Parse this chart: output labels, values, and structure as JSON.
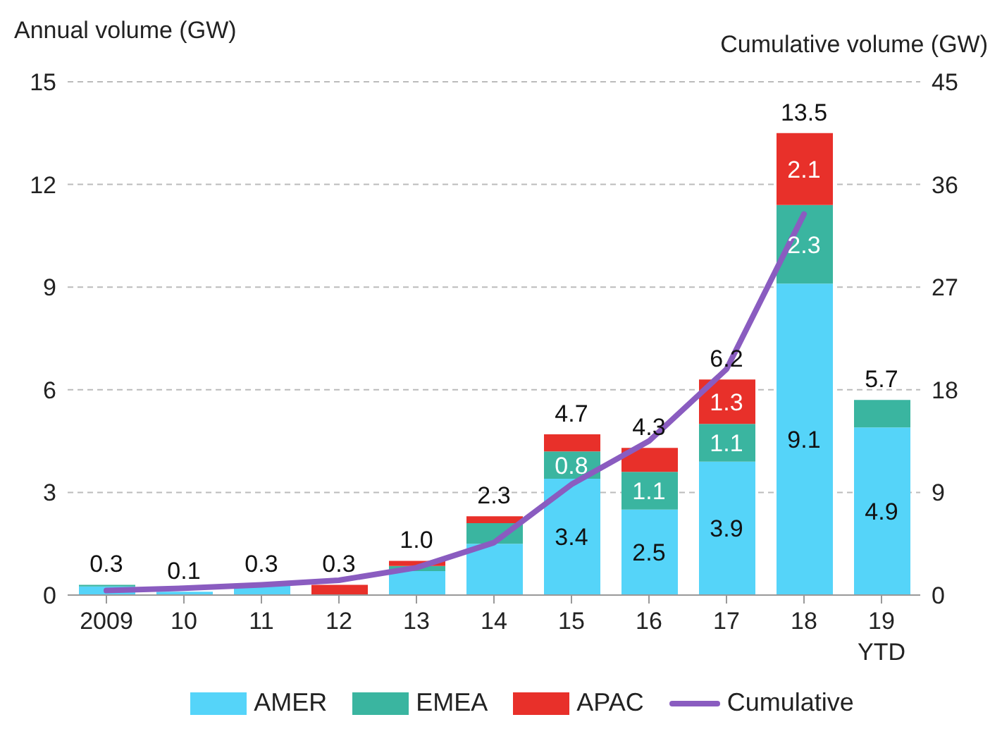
{
  "chart_data": {
    "type": "bar",
    "stacked": true,
    "ylabel": "Annual volume  (GW)",
    "y2label": "Cumulative volume  (GW)",
    "categories": [
      "2009",
      "10",
      "11",
      "12",
      "13",
      "14",
      "15",
      "16",
      "17",
      "18",
      "19 YTD"
    ],
    "series": [
      {
        "name": "AMER",
        "color": "#55d4f9",
        "values": [
          0.25,
          0.1,
          0.3,
          0,
          0.7,
          1.5,
          3.4,
          2.5,
          3.9,
          9.1,
          4.9
        ],
        "value_labels": [
          null,
          null,
          null,
          null,
          null,
          null,
          "3.4",
          "2.5",
          "3.9",
          "9.1",
          "4.9"
        ]
      },
      {
        "name": "EMEA",
        "color": "#3ab5a0",
        "values": [
          0.05,
          0,
          0,
          0,
          0.15,
          0.6,
          0.8,
          1.1,
          1.1,
          2.3,
          0.8
        ],
        "value_labels": [
          null,
          null,
          null,
          null,
          null,
          null,
          "0.8",
          "1.1",
          "1.1",
          "2.3",
          null
        ]
      },
      {
        "name": "APAC",
        "color": "#e8302a",
        "values": [
          0,
          0,
          0,
          0.3,
          0.15,
          0.2,
          0.5,
          0.7,
          1.3,
          2.1,
          0
        ],
        "value_labels": [
          null,
          null,
          null,
          null,
          null,
          null,
          null,
          null,
          "1.3",
          "2.1",
          null
        ]
      },
      {
        "name": "Cumulative",
        "type": "line",
        "axis": "y2",
        "color": "#8a5cc0",
        "values": [
          0.4,
          0.6,
          0.9,
          1.3,
          2.4,
          4.6,
          9.7,
          13.5,
          19.8,
          33.4,
          null
        ]
      }
    ],
    "totals": [
      "0.3",
      "0.1",
      "0.3",
      "0.3",
      "1.0",
      "2.3",
      "4.7",
      "4.3",
      "6.2",
      "13.5",
      "5.7"
    ],
    "ylim": [
      0,
      15
    ],
    "yticks": [
      0,
      3,
      6,
      9,
      12,
      15
    ],
    "y2lim": [
      0,
      45
    ],
    "y2ticks": [
      0,
      9,
      18,
      27,
      36,
      45
    ],
    "grid": "y",
    "legend": "bottom",
    "marker": "none",
    "line_style": "solid"
  }
}
